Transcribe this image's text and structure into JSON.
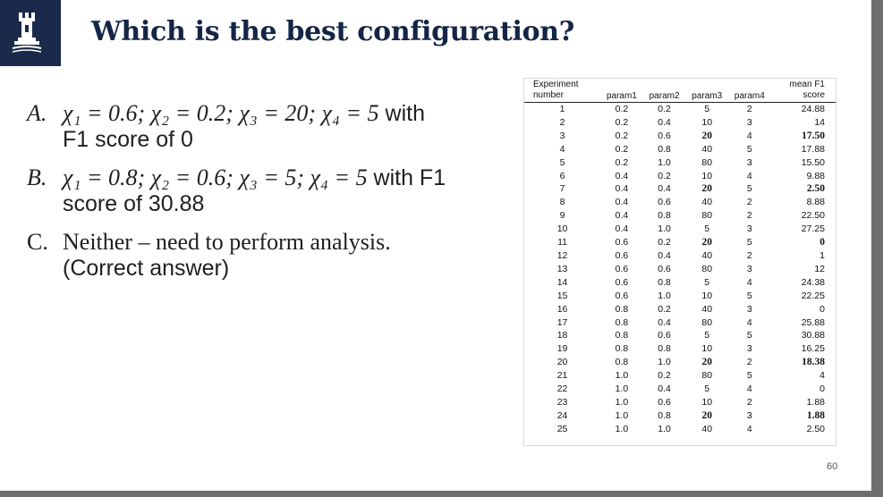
{
  "slide": {
    "title": "Which is the best configuration?",
    "page_number": "60"
  },
  "options": [
    {
      "letter": "A.",
      "math": "χ₁ = 0.6; χ₂ = 0.2; χ₃ = 20; χ₄ = 5",
      "tail": " with",
      "line2": "F1 score of 0"
    },
    {
      "letter": "B.",
      "math": "χ₁ = 0.8; χ₂ = 0.6; χ₃ = 5; χ₄ = 5",
      "tail": " with F1",
      "line2": "score of 30.88"
    },
    {
      "letter": "C.",
      "text": "Neither – need to perform analysis.",
      "line2": "(Correct answer)"
    }
  ],
  "table": {
    "headers": {
      "experiment_line1": "Experiment",
      "experiment_line2": "number",
      "param1": "param1",
      "param2": "param2",
      "param3": "param3",
      "param4": "param4",
      "f1_line1": "mean F1",
      "f1_line2": "score"
    },
    "rows": [
      {
        "n": "1",
        "p1": "0.2",
        "p2": "0.2",
        "p3": "5",
        "p4": "2",
        "f1": "24.88",
        "b3": false,
        "bf": false
      },
      {
        "n": "2",
        "p1": "0.2",
        "p2": "0.4",
        "p3": "10",
        "p4": "3",
        "f1": "14",
        "b3": false,
        "bf": false
      },
      {
        "n": "3",
        "p1": "0.2",
        "p2": "0.6",
        "p3": "20",
        "p4": "4",
        "f1": "17.50",
        "b3": true,
        "bf": true
      },
      {
        "n": "4",
        "p1": "0.2",
        "p2": "0.8",
        "p3": "40",
        "p4": "5",
        "f1": "17.88",
        "b3": false,
        "bf": false
      },
      {
        "n": "5",
        "p1": "0.2",
        "p2": "1.0",
        "p3": "80",
        "p4": "3",
        "f1": "15.50",
        "b3": false,
        "bf": false
      },
      {
        "n": "6",
        "p1": "0.4",
        "p2": "0.2",
        "p3": "10",
        "p4": "4",
        "f1": "9.88",
        "b3": false,
        "bf": false
      },
      {
        "n": "7",
        "p1": "0.4",
        "p2": "0.4",
        "p3": "20",
        "p4": "5",
        "f1": "2.50",
        "b3": true,
        "bf": true
      },
      {
        "n": "8",
        "p1": "0.4",
        "p2": "0.6",
        "p3": "40",
        "p4": "2",
        "f1": "8.88",
        "b3": false,
        "bf": false
      },
      {
        "n": "9",
        "p1": "0.4",
        "p2": "0.8",
        "p3": "80",
        "p4": "2",
        "f1": "22.50",
        "b3": false,
        "bf": false
      },
      {
        "n": "10",
        "p1": "0.4",
        "p2": "1.0",
        "p3": "5",
        "p4": "3",
        "f1": "27.25",
        "b3": false,
        "bf": false
      },
      {
        "n": "11",
        "p1": "0.6",
        "p2": "0.2",
        "p3": "20",
        "p4": "5",
        "f1": "0",
        "b3": true,
        "bf": true
      },
      {
        "n": "12",
        "p1": "0.6",
        "p2": "0.4",
        "p3": "40",
        "p4": "2",
        "f1": "1",
        "b3": false,
        "bf": false
      },
      {
        "n": "13",
        "p1": "0.6",
        "p2": "0.6",
        "p3": "80",
        "p4": "3",
        "f1": "12",
        "b3": false,
        "bf": false
      },
      {
        "n": "14",
        "p1": "0.6",
        "p2": "0.8",
        "p3": "5",
        "p4": "4",
        "f1": "24.38",
        "b3": false,
        "bf": false
      },
      {
        "n": "15",
        "p1": "0.6",
        "p2": "1.0",
        "p3": "10",
        "p4": "5",
        "f1": "22.25",
        "b3": false,
        "bf": false
      },
      {
        "n": "16",
        "p1": "0.8",
        "p2": "0.2",
        "p3": "40",
        "p4": "3",
        "f1": "0",
        "b3": false,
        "bf": false
      },
      {
        "n": "17",
        "p1": "0.8",
        "p2": "0.4",
        "p3": "80",
        "p4": "4",
        "f1": "25.88",
        "b3": false,
        "bf": false
      },
      {
        "n": "18",
        "p1": "0.8",
        "p2": "0.6",
        "p3": "5",
        "p4": "5",
        "f1": "30.88",
        "b3": false,
        "bf": false
      },
      {
        "n": "19",
        "p1": "0.8",
        "p2": "0.8",
        "p3": "10",
        "p4": "3",
        "f1": "16.25",
        "b3": false,
        "bf": false
      },
      {
        "n": "20",
        "p1": "0.8",
        "p2": "1.0",
        "p3": "20",
        "p4": "2",
        "f1": "18.38",
        "b3": true,
        "bf": true
      },
      {
        "n": "21",
        "p1": "1.0",
        "p2": "0.2",
        "p3": "80",
        "p4": "5",
        "f1": "4",
        "b3": false,
        "bf": false
      },
      {
        "n": "22",
        "p1": "1.0",
        "p2": "0.4",
        "p3": "5",
        "p4": "4",
        "f1": "0",
        "b3": false,
        "bf": false
      },
      {
        "n": "23",
        "p1": "1.0",
        "p2": "0.6",
        "p3": "10",
        "p4": "2",
        "f1": "1.88",
        "b3": false,
        "bf": false
      },
      {
        "n": "24",
        "p1": "1.0",
        "p2": "0.8",
        "p3": "20",
        "p4": "3",
        "f1": "1.88",
        "b3": true,
        "bf": true
      },
      {
        "n": "25",
        "p1": "1.0",
        "p2": "1.0",
        "p3": "40",
        "p4": "4",
        "f1": "2.50",
        "b3": false,
        "bf": false
      }
    ]
  },
  "colors": {
    "logo_background": "#1b2a4a",
    "title_text": "#142546"
  },
  "icons": {
    "logo": "castle-tower-logo-icon"
  }
}
